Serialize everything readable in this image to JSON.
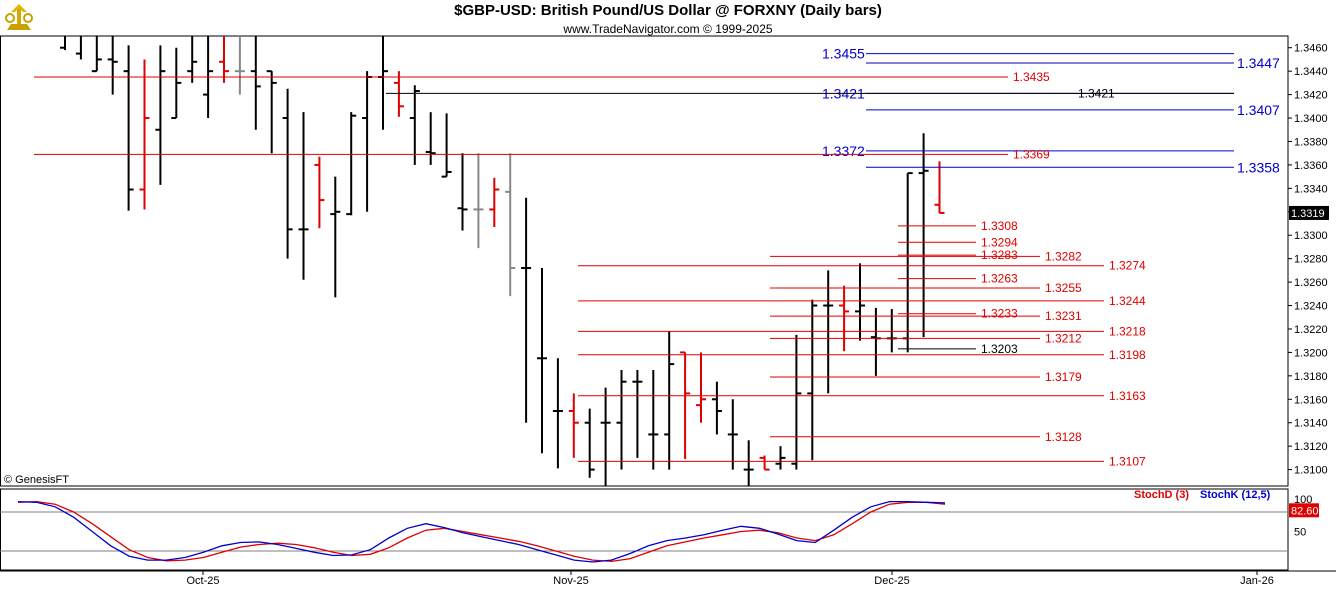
{
  "header": {
    "title": "$GBP-USD:  British Pound/US Dollar @ FORXNY  (Daily bars)",
    "subtitle": "www.TradeNavigator.com © 1999-2025"
  },
  "footer": {
    "copyright": "© GenesisFT"
  },
  "colors": {
    "up": "#000000",
    "down": "#e00000",
    "blue_lines": "#0000cc",
    "red_lines": "#e00000",
    "stoch_d": "#e00000",
    "stoch_k": "#0000cc",
    "grid": "#7f7f7f"
  },
  "chart_data": [
    {
      "type": "ohlc",
      "title": "$GBP-USD:  British Pound/US Dollar @ FORXNY  (Daily bars)",
      "y_range": [
        1.3086,
        1.347
      ],
      "y_ticks": [
        "1.3460",
        "1.3440",
        "1.3420",
        "1.3400",
        "1.3380",
        "1.3360",
        "1.3340",
        "1.3320",
        "1.3300",
        "1.3280",
        "1.3260",
        "1.3240",
        "1.3220",
        "1.3200",
        "1.3180",
        "1.3160",
        "1.3140",
        "1.3120",
        "1.3100"
      ],
      "last_price_label": "1.3319",
      "x_axis_labels": [
        "Oct-25",
        "Nov-25",
        "Dec-25",
        "Jan-26"
      ],
      "bars": [
        {
          "o": 1.346,
          "h": 1.348,
          "l": 1.3458,
          "c": 1.347,
          "color": "black"
        },
        {
          "o": 1.3455,
          "h": 1.348,
          "l": 1.345,
          "c": 1.347,
          "color": "black"
        },
        {
          "o": 1.344,
          "h": 1.347,
          "l": 1.344,
          "c": 1.345,
          "color": "black"
        },
        {
          "o": 1.345,
          "h": 1.347,
          "l": 1.342,
          "c": 1.3448,
          "color": "black"
        },
        {
          "o": 1.344,
          "h": 1.3462,
          "l": 1.3321,
          "c": 1.3339,
          "color": "black"
        },
        {
          "o": 1.3339,
          "h": 1.345,
          "l": 1.3322,
          "c": 1.34,
          "color": "red"
        },
        {
          "o": 1.339,
          "h": 1.3462,
          "l": 1.3343,
          "c": 1.344,
          "color": "black"
        },
        {
          "o": 1.34,
          "h": 1.346,
          "l": 1.34,
          "c": 1.343,
          "color": "black"
        },
        {
          "o": 1.344,
          "h": 1.347,
          "l": 1.343,
          "c": 1.3448,
          "color": "black"
        },
        {
          "o": 1.342,
          "h": 1.347,
          "l": 1.34,
          "c": 1.344,
          "color": "black"
        },
        {
          "o": 1.3448,
          "h": 1.347,
          "l": 1.343,
          "c": 1.344,
          "color": "red"
        },
        {
          "o": 1.344,
          "h": 1.347,
          "l": 1.342,
          "c": 1.344,
          "color": "gray"
        },
        {
          "o": 1.344,
          "h": 1.347,
          "l": 1.339,
          "c": 1.3427,
          "color": "black"
        },
        {
          "o": 1.344,
          "h": 1.344,
          "l": 1.337,
          "c": 1.343,
          "color": "black"
        },
        {
          "o": 1.34,
          "h": 1.3425,
          "l": 1.328,
          "c": 1.3305,
          "color": "black"
        },
        {
          "o": 1.3305,
          "h": 1.3405,
          "l": 1.3262,
          "c": 1.3305,
          "color": "black"
        },
        {
          "o": 1.336,
          "h": 1.3367,
          "l": 1.3306,
          "c": 1.333,
          "color": "red"
        },
        {
          "o": 1.3318,
          "h": 1.335,
          "l": 1.3247,
          "c": 1.332,
          "color": "black"
        },
        {
          "o": 1.3318,
          "h": 1.3405,
          "l": 1.3317,
          "c": 1.3402,
          "color": "black"
        },
        {
          "o": 1.34,
          "h": 1.344,
          "l": 1.332,
          "c": 1.3435,
          "color": "black"
        },
        {
          "o": 1.3435,
          "h": 1.3472,
          "l": 1.339,
          "c": 1.344,
          "color": "black"
        },
        {
          "o": 1.343,
          "h": 1.344,
          "l": 1.3401,
          "c": 1.341,
          "color": "red"
        },
        {
          "o": 1.34,
          "h": 1.3428,
          "l": 1.336,
          "c": 1.3423,
          "color": "black"
        },
        {
          "o": 1.3371,
          "h": 1.3405,
          "l": 1.336,
          "c": 1.337,
          "color": "black"
        },
        {
          "o": 1.335,
          "h": 1.3404,
          "l": 1.335,
          "c": 1.3354,
          "color": "black"
        },
        {
          "o": 1.3323,
          "h": 1.337,
          "l": 1.3304,
          "c": 1.3322,
          "color": "black"
        },
        {
          "o": 1.3322,
          "h": 1.337,
          "l": 1.3289,
          "c": 1.3322,
          "color": "gray"
        },
        {
          "o": 1.3322,
          "h": 1.3349,
          "l": 1.3307,
          "c": 1.3339,
          "color": "red"
        },
        {
          "o": 1.3337,
          "h": 1.337,
          "l": 1.3248,
          "c": 1.3272,
          "color": "gray"
        },
        {
          "o": 1.3272,
          "h": 1.3332,
          "l": 1.314,
          "c": 1.3272,
          "color": "black"
        },
        {
          "o": 1.3195,
          "h": 1.3272,
          "l": 1.3114,
          "c": 1.3195,
          "color": "black"
        },
        {
          "o": 1.315,
          "h": 1.3195,
          "l": 1.3101,
          "c": 1.315,
          "color": "black"
        },
        {
          "o": 1.315,
          "h": 1.3165,
          "l": 1.311,
          "c": 1.314,
          "color": "red"
        },
        {
          "o": 1.314,
          "h": 1.3152,
          "l": 1.3093,
          "c": 1.31,
          "color": "black"
        },
        {
          "o": 1.314,
          "h": 1.317,
          "l": 1.308,
          "c": 1.314,
          "color": "black"
        },
        {
          "o": 1.314,
          "h": 1.3185,
          "l": 1.31,
          "c": 1.3175,
          "color": "black"
        },
        {
          "o": 1.3175,
          "h": 1.3185,
          "l": 1.311,
          "c": 1.3175,
          "color": "black"
        },
        {
          "o": 1.313,
          "h": 1.3185,
          "l": 1.31,
          "c": 1.313,
          "color": "black"
        },
        {
          "o": 1.313,
          "h": 1.3218,
          "l": 1.31,
          "c": 1.319,
          "color": "black"
        },
        {
          "o": 1.32,
          "h": 1.32,
          "l": 1.3109,
          "c": 1.3165,
          "color": "red"
        },
        {
          "o": 1.3155,
          "h": 1.32,
          "l": 1.314,
          "c": 1.316,
          "color": "red"
        },
        {
          "o": 1.316,
          "h": 1.3175,
          "l": 1.313,
          "c": 1.315,
          "color": "black"
        },
        {
          "o": 1.313,
          "h": 1.316,
          "l": 1.31,
          "c": 1.313,
          "color": "black"
        },
        {
          "o": 1.31,
          "h": 1.3125,
          "l": 1.3085,
          "c": 1.31,
          "color": "black"
        },
        {
          "o": 1.311,
          "h": 1.3112,
          "l": 1.31,
          "c": 1.31,
          "color": "red"
        },
        {
          "o": 1.3105,
          "h": 1.312,
          "l": 1.31,
          "c": 1.311,
          "color": "black"
        },
        {
          "o": 1.3105,
          "h": 1.3215,
          "l": 1.31,
          "c": 1.3165,
          "color": "black"
        },
        {
          "o": 1.3165,
          "h": 1.3245,
          "l": 1.3108,
          "c": 1.324,
          "color": "black"
        },
        {
          "o": 1.324,
          "h": 1.327,
          "l": 1.3165,
          "c": 1.324,
          "color": "black"
        },
        {
          "o": 1.324,
          "h": 1.3257,
          "l": 1.3201,
          "c": 1.3235,
          "color": "red"
        },
        {
          "o": 1.3235,
          "h": 1.3276,
          "l": 1.321,
          "c": 1.324,
          "color": "black"
        },
        {
          "o": 1.3213,
          "h": 1.3238,
          "l": 1.318,
          "c": 1.3212,
          "color": "black"
        },
        {
          "o": 1.3212,
          "h": 1.3237,
          "l": 1.32,
          "c": 1.3212,
          "color": "black"
        },
        {
          "o": 1.3212,
          "h": 1.3353,
          "l": 1.32,
          "c": 1.3353,
          "color": "black"
        },
        {
          "o": 1.3353,
          "h": 1.3387,
          "l": 1.3213,
          "c": 1.3355,
          "color": "black"
        },
        {
          "o": 1.3326,
          "h": 1.3363,
          "l": 1.3319,
          "c": 1.3319,
          "color": "red"
        }
      ],
      "horizontal_lines": [
        {
          "value": 1.3455,
          "label": "1.3455",
          "color": "blue",
          "side": "left",
          "from_bar": 49,
          "label_left": true
        },
        {
          "value": 1.3447,
          "label": "1.3447",
          "color": "blue",
          "side": "right",
          "from_bar": 49
        },
        {
          "value": 1.3435,
          "label": "1.3435",
          "color": "red",
          "side": "mid",
          "from_bar": -1
        },
        {
          "value": 1.3421,
          "label": "1.3421",
          "color": "blue",
          "side": "left",
          "from_bar": 49,
          "label_left": true
        },
        {
          "value": 1.3421,
          "label": "1.3421",
          "color": "black",
          "side": "mid2",
          "from_bar": 23
        },
        {
          "value": 1.3407,
          "label": "1.3407",
          "color": "blue",
          "side": "right",
          "from_bar": 49
        },
        {
          "value": 1.3372,
          "label": "1.3372",
          "color": "blue",
          "side": "left",
          "from_bar": 49,
          "label_left": true
        },
        {
          "value": 1.3369,
          "label": "1.3369",
          "color": "red",
          "side": "mid",
          "from_bar": -1
        },
        {
          "value": 1.3358,
          "label": "1.3358",
          "color": "blue",
          "side": "right",
          "from_bar": 49
        },
        {
          "value": 1.3308,
          "label": "1.3308",
          "color": "red",
          "side": "near",
          "from_bar": 52
        },
        {
          "value": 1.3294,
          "label": "1.3294",
          "color": "red",
          "side": "near",
          "from_bar": 52
        },
        {
          "value": 1.3283,
          "label": "1.3283",
          "color": "red",
          "side": "near",
          "from_bar": 52
        },
        {
          "value": 1.3282,
          "label": "1.3282",
          "color": "red",
          "side": "mid",
          "from_bar": 45
        },
        {
          "value": 1.3274,
          "label": "1.3274",
          "color": "red",
          "side": "far",
          "from_bar": 33
        },
        {
          "value": 1.3263,
          "label": "1.3263",
          "color": "red",
          "side": "near",
          "from_bar": 52
        },
        {
          "value": 1.3255,
          "label": "1.3255",
          "color": "red",
          "side": "mid",
          "from_bar": 45
        },
        {
          "value": 1.3244,
          "label": "1.3244",
          "color": "red",
          "side": "far",
          "from_bar": 33
        },
        {
          "value": 1.3233,
          "label": "1.3233",
          "color": "red",
          "side": "near",
          "from_bar": 52
        },
        {
          "value": 1.3231,
          "label": "1.3231",
          "color": "red",
          "side": "mid",
          "from_bar": 45
        },
        {
          "value": 1.3218,
          "label": "1.3218",
          "color": "red",
          "side": "far",
          "from_bar": 33
        },
        {
          "value": 1.3212,
          "label": "1.3212",
          "color": "red",
          "side": "mid",
          "from_bar": 45
        },
        {
          "value": 1.3203,
          "label": "1.3203",
          "color": "black",
          "side": "near",
          "from_bar": 52
        },
        {
          "value": 1.3198,
          "label": "1.3198",
          "color": "red",
          "side": "far",
          "from_bar": 33
        },
        {
          "value": 1.3179,
          "label": "1.3179",
          "color": "red",
          "side": "mid",
          "from_bar": 45
        },
        {
          "value": 1.3163,
          "label": "1.3163",
          "color": "red",
          "side": "far",
          "from_bar": 33
        },
        {
          "value": 1.3128,
          "label": "1.3128",
          "color": "red",
          "side": "mid",
          "from_bar": 45
        },
        {
          "value": 1.3107,
          "label": "1.3107",
          "color": "red",
          "side": "far",
          "from_bar": 33
        }
      ]
    },
    {
      "type": "line",
      "y_range": [
        0,
        100
      ],
      "y_ticks": [
        "100",
        "50"
      ],
      "reference_levels": [
        80,
        20
      ],
      "last_value_label": "82.60",
      "series": [
        {
          "name": "StochD (3)",
          "color": "#e00000",
          "values": [
            95,
            96,
            92,
            80,
            62,
            42,
            22,
            10,
            5,
            6,
            10,
            18,
            26,
            30,
            32,
            30,
            25,
            18,
            13,
            15,
            25,
            40,
            52,
            55,
            50,
            45,
            40,
            35,
            28,
            20,
            12,
            6,
            4,
            8,
            18,
            28,
            34,
            40,
            45,
            50,
            52,
            48,
            40,
            36,
            45,
            62,
            80,
            92,
            95,
            95,
            92
          ]
        },
        {
          "name": "StochK (12,5)",
          "color": "#0000cc",
          "values": [
            96,
            95,
            88,
            72,
            50,
            28,
            12,
            6,
            6,
            10,
            18,
            28,
            33,
            34,
            30,
            24,
            18,
            13,
            14,
            22,
            40,
            55,
            62,
            56,
            48,
            42,
            36,
            30,
            22,
            14,
            6,
            3,
            6,
            16,
            28,
            36,
            40,
            45,
            52,
            58,
            55,
            46,
            36,
            33,
            52,
            72,
            88,
            96,
            96,
            95,
            94
          ]
        }
      ]
    }
  ]
}
